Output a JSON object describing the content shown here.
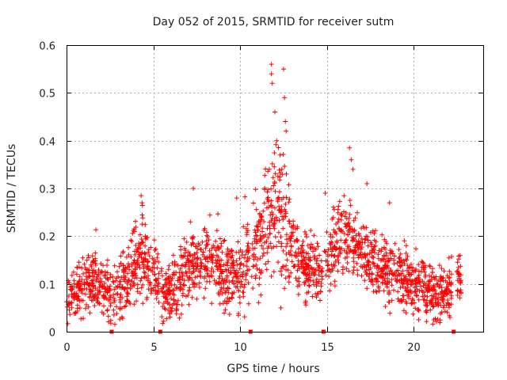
{
  "chart_data": {
    "type": "scatter",
    "title": "Day 052 of 2015, SRMTID for receiver sutm",
    "xlabel": "GPS time / hours",
    "ylabel": "SRMTID / TECUs",
    "xlim": [
      0,
      24
    ],
    "ylim": [
      0,
      0.6
    ],
    "grid": true,
    "marker": "+",
    "color": "#ff0000",
    "x_tick_labels": [
      "0",
      "5",
      "10",
      "15",
      "20"
    ],
    "y_tick_labels": [
      "0",
      "0.1",
      "0.2",
      "0.3",
      "0.4",
      "0.5",
      "0.6"
    ],
    "data_gap_markers_x": [
      2.6,
      5.4,
      10.6,
      14.8,
      22.3
    ],
    "series": [
      {
        "name": "SRMTID",
        "trend": {
          "x": [
            0,
            0.5,
            1,
            1.5,
            2,
            2.5,
            3,
            3.5,
            4,
            4.5,
            5,
            5.5,
            6,
            6.5,
            7,
            7.5,
            8,
            8.5,
            9,
            9.5,
            10,
            10.5,
            11,
            11.5,
            12,
            12.5,
            13,
            13.5,
            14,
            14.5,
            15,
            15.5,
            16,
            16.5,
            17,
            17.5,
            18,
            18.5,
            19,
            19.5,
            20,
            20.5,
            21,
            21.5,
            22,
            22.5
          ],
          "y": [
            0.06,
            0.08,
            0.1,
            0.1,
            0.09,
            0.07,
            0.09,
            0.11,
            0.14,
            0.16,
            0.12,
            0.09,
            0.08,
            0.1,
            0.14,
            0.15,
            0.15,
            0.14,
            0.12,
            0.12,
            0.12,
            0.15,
            0.18,
            0.22,
            0.25,
            0.22,
            0.17,
            0.14,
            0.13,
            0.13,
            0.15,
            0.17,
            0.2,
            0.19,
            0.16,
            0.15,
            0.14,
            0.12,
            0.11,
            0.11,
            0.1,
            0.1,
            0.08,
            0.07,
            0.08,
            0.11
          ]
        },
        "spread": {
          "x": [
            0,
            2,
            4,
            6,
            8,
            10,
            11.5,
            12,
            12.5,
            13,
            14,
            16,
            18,
            20,
            22.5
          ],
          "y": [
            0.04,
            0.05,
            0.06,
            0.05,
            0.06,
            0.06,
            0.09,
            0.11,
            0.1,
            0.07,
            0.05,
            0.06,
            0.05,
            0.05,
            0.04
          ]
        },
        "segments": [
          [
            0,
            2.55
          ],
          [
            2.65,
            5.35
          ],
          [
            5.45,
            10.55
          ],
          [
            10.65,
            14.75
          ],
          [
            14.85,
            22.2
          ],
          [
            22.45,
            22.75
          ]
        ],
        "density_per_hour": 95,
        "peaks": [
          {
            "x": 11.8,
            "y": 0.56
          },
          {
            "x": 11.8,
            "y": 0.54
          },
          {
            "x": 11.85,
            "y": 0.52
          },
          {
            "x": 12.5,
            "y": 0.55
          },
          {
            "x": 12.55,
            "y": 0.49
          },
          {
            "x": 12.6,
            "y": 0.44
          },
          {
            "x": 12.65,
            "y": 0.42
          },
          {
            "x": 12.0,
            "y": 0.46
          },
          {
            "x": 12.1,
            "y": 0.4
          },
          {
            "x": 12.3,
            "y": 0.37
          },
          {
            "x": 12.4,
            "y": 0.34
          },
          {
            "x": 16.3,
            "y": 0.385
          },
          {
            "x": 16.4,
            "y": 0.36
          },
          {
            "x": 16.5,
            "y": 0.34
          },
          {
            "x": 17.3,
            "y": 0.31
          },
          {
            "x": 4.3,
            "y": 0.285
          },
          {
            "x": 4.35,
            "y": 0.27
          },
          {
            "x": 7.3,
            "y": 0.3
          },
          {
            "x": 9.8,
            "y": 0.28
          },
          {
            "x": 14.9,
            "y": 0.29
          },
          {
            "x": 18.6,
            "y": 0.27
          }
        ]
      }
    ]
  }
}
